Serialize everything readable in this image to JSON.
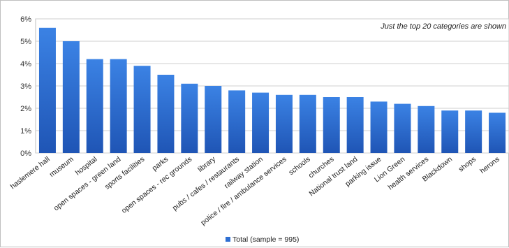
{
  "chart_data": {
    "type": "bar",
    "categories": [
      "haslemere hall",
      "museum",
      "hospital",
      "open spaces - green land",
      "sports facilities",
      "parks",
      "open spaces - rec grounds",
      "library",
      "pubs / cafes / restaurants",
      "railway station",
      "police / fire / ambulance services",
      "schools",
      "churches",
      "National trust land",
      "parking issue",
      "Lion Green",
      "health services",
      "Blackdown",
      "shops",
      "herons"
    ],
    "series": [
      {
        "name": "Total (sample = 995)",
        "values": [
          5.6,
          5.0,
          4.2,
          4.2,
          3.9,
          3.5,
          3.1,
          3.0,
          2.8,
          2.7,
          2.6,
          2.6,
          2.5,
          2.5,
          2.3,
          2.2,
          2.1,
          1.9,
          1.9,
          1.8
        ],
        "color": "#2e6fd2"
      }
    ],
    "ylim": [
      0,
      6
    ],
    "yticks": [
      "0%",
      "1%",
      "2%",
      "3%",
      "4%",
      "5%",
      "6%"
    ],
    "y_unit": "percent",
    "grid": true,
    "legend_position": "bottom",
    "annotation": "Just the top 20 categories are shown"
  }
}
